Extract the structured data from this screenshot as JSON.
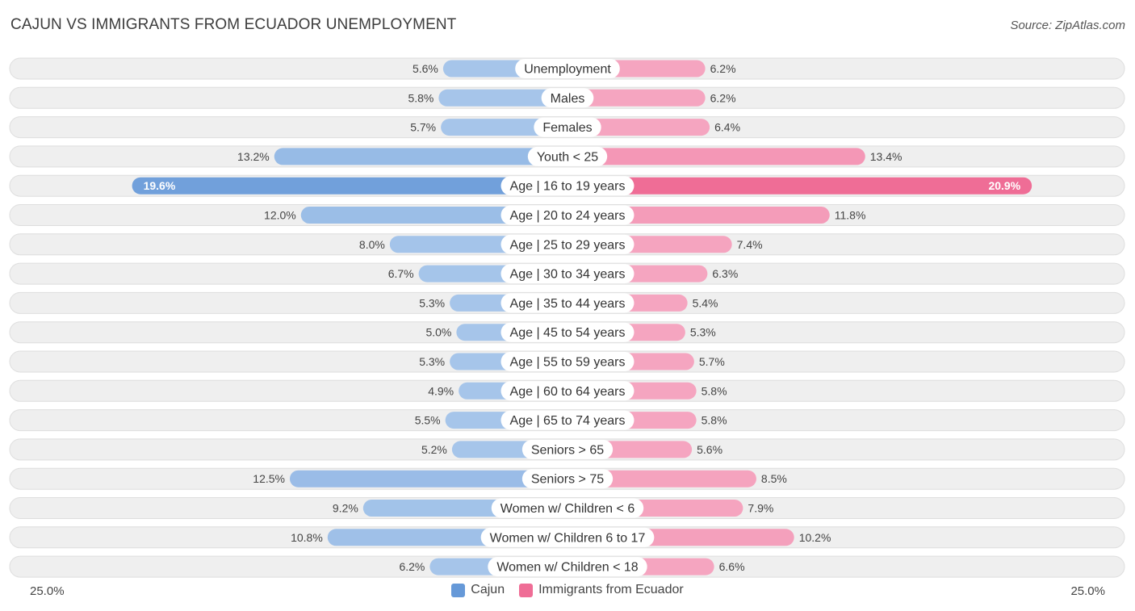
{
  "header": {
    "title": "CAJUN VS IMMIGRANTS FROM ECUADOR UNEMPLOYMENT",
    "source": "Source: ZipAtlas.com"
  },
  "axis": {
    "left_label": "25.0%",
    "right_label": "25.0%"
  },
  "legend": {
    "left_name": "Cajun",
    "right_name": "Immigrants from Ecuador"
  },
  "colors": {
    "left_light": "#a6c5ea",
    "left_strong": "#6699d8",
    "right_light": "#f5a5c0",
    "right_strong": "#ef6d96",
    "track": "#efefef",
    "track_border": "#dedede"
  },
  "chart_data": {
    "type": "bar",
    "orientation": "horizontal-diverging",
    "title": "CAJUN VS IMMIGRANTS FROM ECUADOR UNEMPLOYMENT",
    "xlim": [
      -25,
      25
    ],
    "unit": "%",
    "categories": [
      "Unemployment",
      "Males",
      "Females",
      "Youth < 25",
      "Age | 16 to 19 years",
      "Age | 20 to 24 years",
      "Age | 25 to 29 years",
      "Age | 30 to 34 years",
      "Age | 35 to 44 years",
      "Age | 45 to 54 years",
      "Age | 55 to 59 years",
      "Age | 60 to 64 years",
      "Age | 65 to 74 years",
      "Seniors > 65",
      "Seniors > 75",
      "Women w/ Children < 6",
      "Women w/ Children 6 to 17",
      "Women w/ Children < 18"
    ],
    "series": [
      {
        "name": "Cajun",
        "values": [
          5.6,
          5.8,
          5.7,
          13.2,
          19.6,
          12.0,
          8.0,
          6.7,
          5.3,
          5.0,
          5.3,
          4.9,
          5.5,
          5.2,
          12.5,
          9.2,
          10.8,
          6.2
        ],
        "labels": [
          "5.6%",
          "5.8%",
          "5.7%",
          "13.2%",
          "19.6%",
          "12.0%",
          "8.0%",
          "6.7%",
          "5.3%",
          "5.0%",
          "5.3%",
          "4.9%",
          "5.5%",
          "5.2%",
          "12.5%",
          "9.2%",
          "10.8%",
          "6.2%"
        ]
      },
      {
        "name": "Immigrants from Ecuador",
        "values": [
          6.2,
          6.2,
          6.4,
          13.4,
          20.9,
          11.8,
          7.4,
          6.3,
          5.4,
          5.3,
          5.7,
          5.8,
          5.8,
          5.6,
          8.5,
          7.9,
          10.2,
          6.6
        ],
        "labels": [
          "6.2%",
          "6.2%",
          "6.4%",
          "13.4%",
          "20.9%",
          "11.8%",
          "7.4%",
          "6.3%",
          "5.4%",
          "5.3%",
          "5.7%",
          "5.8%",
          "5.8%",
          "5.6%",
          "8.5%",
          "7.9%",
          "10.2%",
          "6.6%"
        ]
      }
    ]
  }
}
